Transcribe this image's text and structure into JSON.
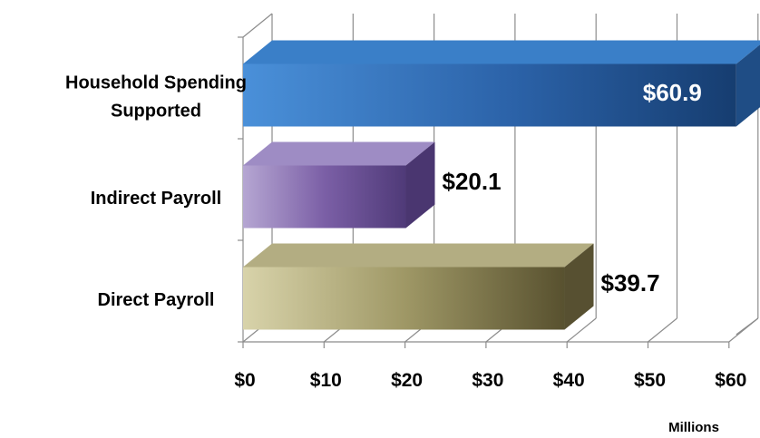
{
  "chart_data": {
    "type": "bar",
    "orientation": "horizontal",
    "style": "3d",
    "categories": [
      "Household Spending Supported",
      "Indirect Payroll",
      "Direct Payroll"
    ],
    "category_lines": [
      [
        "Household Spending",
        "Supported"
      ],
      [
        "Indirect Payroll"
      ],
      [
        "Direct Payroll"
      ]
    ],
    "values": [
      60.9,
      20.1,
      39.7
    ],
    "data_labels": [
      "$60.9",
      "$20.1",
      "$39.7"
    ],
    "colors": [
      "#2f6db5",
      "#7b5fa6",
      "#8a8358"
    ],
    "xticks": [
      0,
      10,
      20,
      30,
      40,
      50,
      60
    ],
    "xtick_labels": [
      "$0",
      "$10",
      "$20",
      "$30",
      "$40",
      "$50",
      "$60"
    ],
    "xlim": [
      0,
      60
    ],
    "unit_label": "Millions",
    "grid": true
  }
}
